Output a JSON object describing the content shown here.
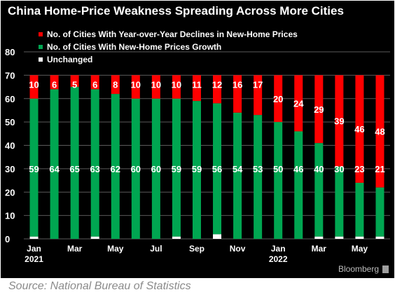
{
  "title": "China Home-Price Weakness Spreading Across More Cities",
  "source": "Source: National Bureau of Statistics",
  "brand": "Bloomberg",
  "colors": {
    "declines": "#ff0000",
    "growth": "#00a651",
    "unchanged": "#ffffff",
    "background": "#000000"
  },
  "chart_data": {
    "type": "bar",
    "stacked": true,
    "title": "China Home-Price Weakness Spreading Across More Cities",
    "legend_position": "top-left",
    "grid": true,
    "ylim": [
      0,
      80
    ],
    "yticks": [
      0,
      10,
      20,
      30,
      40,
      50,
      60,
      70,
      80
    ],
    "x_tick_labels": [
      {
        "index": 0,
        "label": "Jan",
        "sub": "2021"
      },
      {
        "index": 2,
        "label": "Mar",
        "sub": ""
      },
      {
        "index": 4,
        "label": "May",
        "sub": ""
      },
      {
        "index": 6,
        "label": "Jul",
        "sub": ""
      },
      {
        "index": 8,
        "label": "Sep",
        "sub": ""
      },
      {
        "index": 10,
        "label": "Nov",
        "sub": ""
      },
      {
        "index": 12,
        "label": "Jan",
        "sub": "2022"
      },
      {
        "index": 14,
        "label": "Mar",
        "sub": ""
      },
      {
        "index": 16,
        "label": "May",
        "sub": ""
      }
    ],
    "series": [
      {
        "name": "No. of Cities With Year-over-Year Declines in New-Home Prices",
        "values": [
          10,
          6,
          5,
          6,
          8,
          10,
          10,
          10,
          11,
          12,
          16,
          17,
          20,
          24,
          29,
          39,
          46,
          48
        ]
      },
      {
        "name": "No. of Cities With New-Home Prices Growth",
        "values": [
          59,
          64,
          65,
          63,
          62,
          60,
          60,
          59,
          59,
          56,
          54,
          53,
          50,
          46,
          40,
          30,
          23,
          21
        ]
      },
      {
        "name": "Unchanged",
        "values": [
          1,
          0,
          0,
          1,
          0,
          0,
          0,
          1,
          0,
          2,
          0,
          0,
          0,
          0,
          1,
          1,
          1,
          1
        ]
      }
    ]
  }
}
